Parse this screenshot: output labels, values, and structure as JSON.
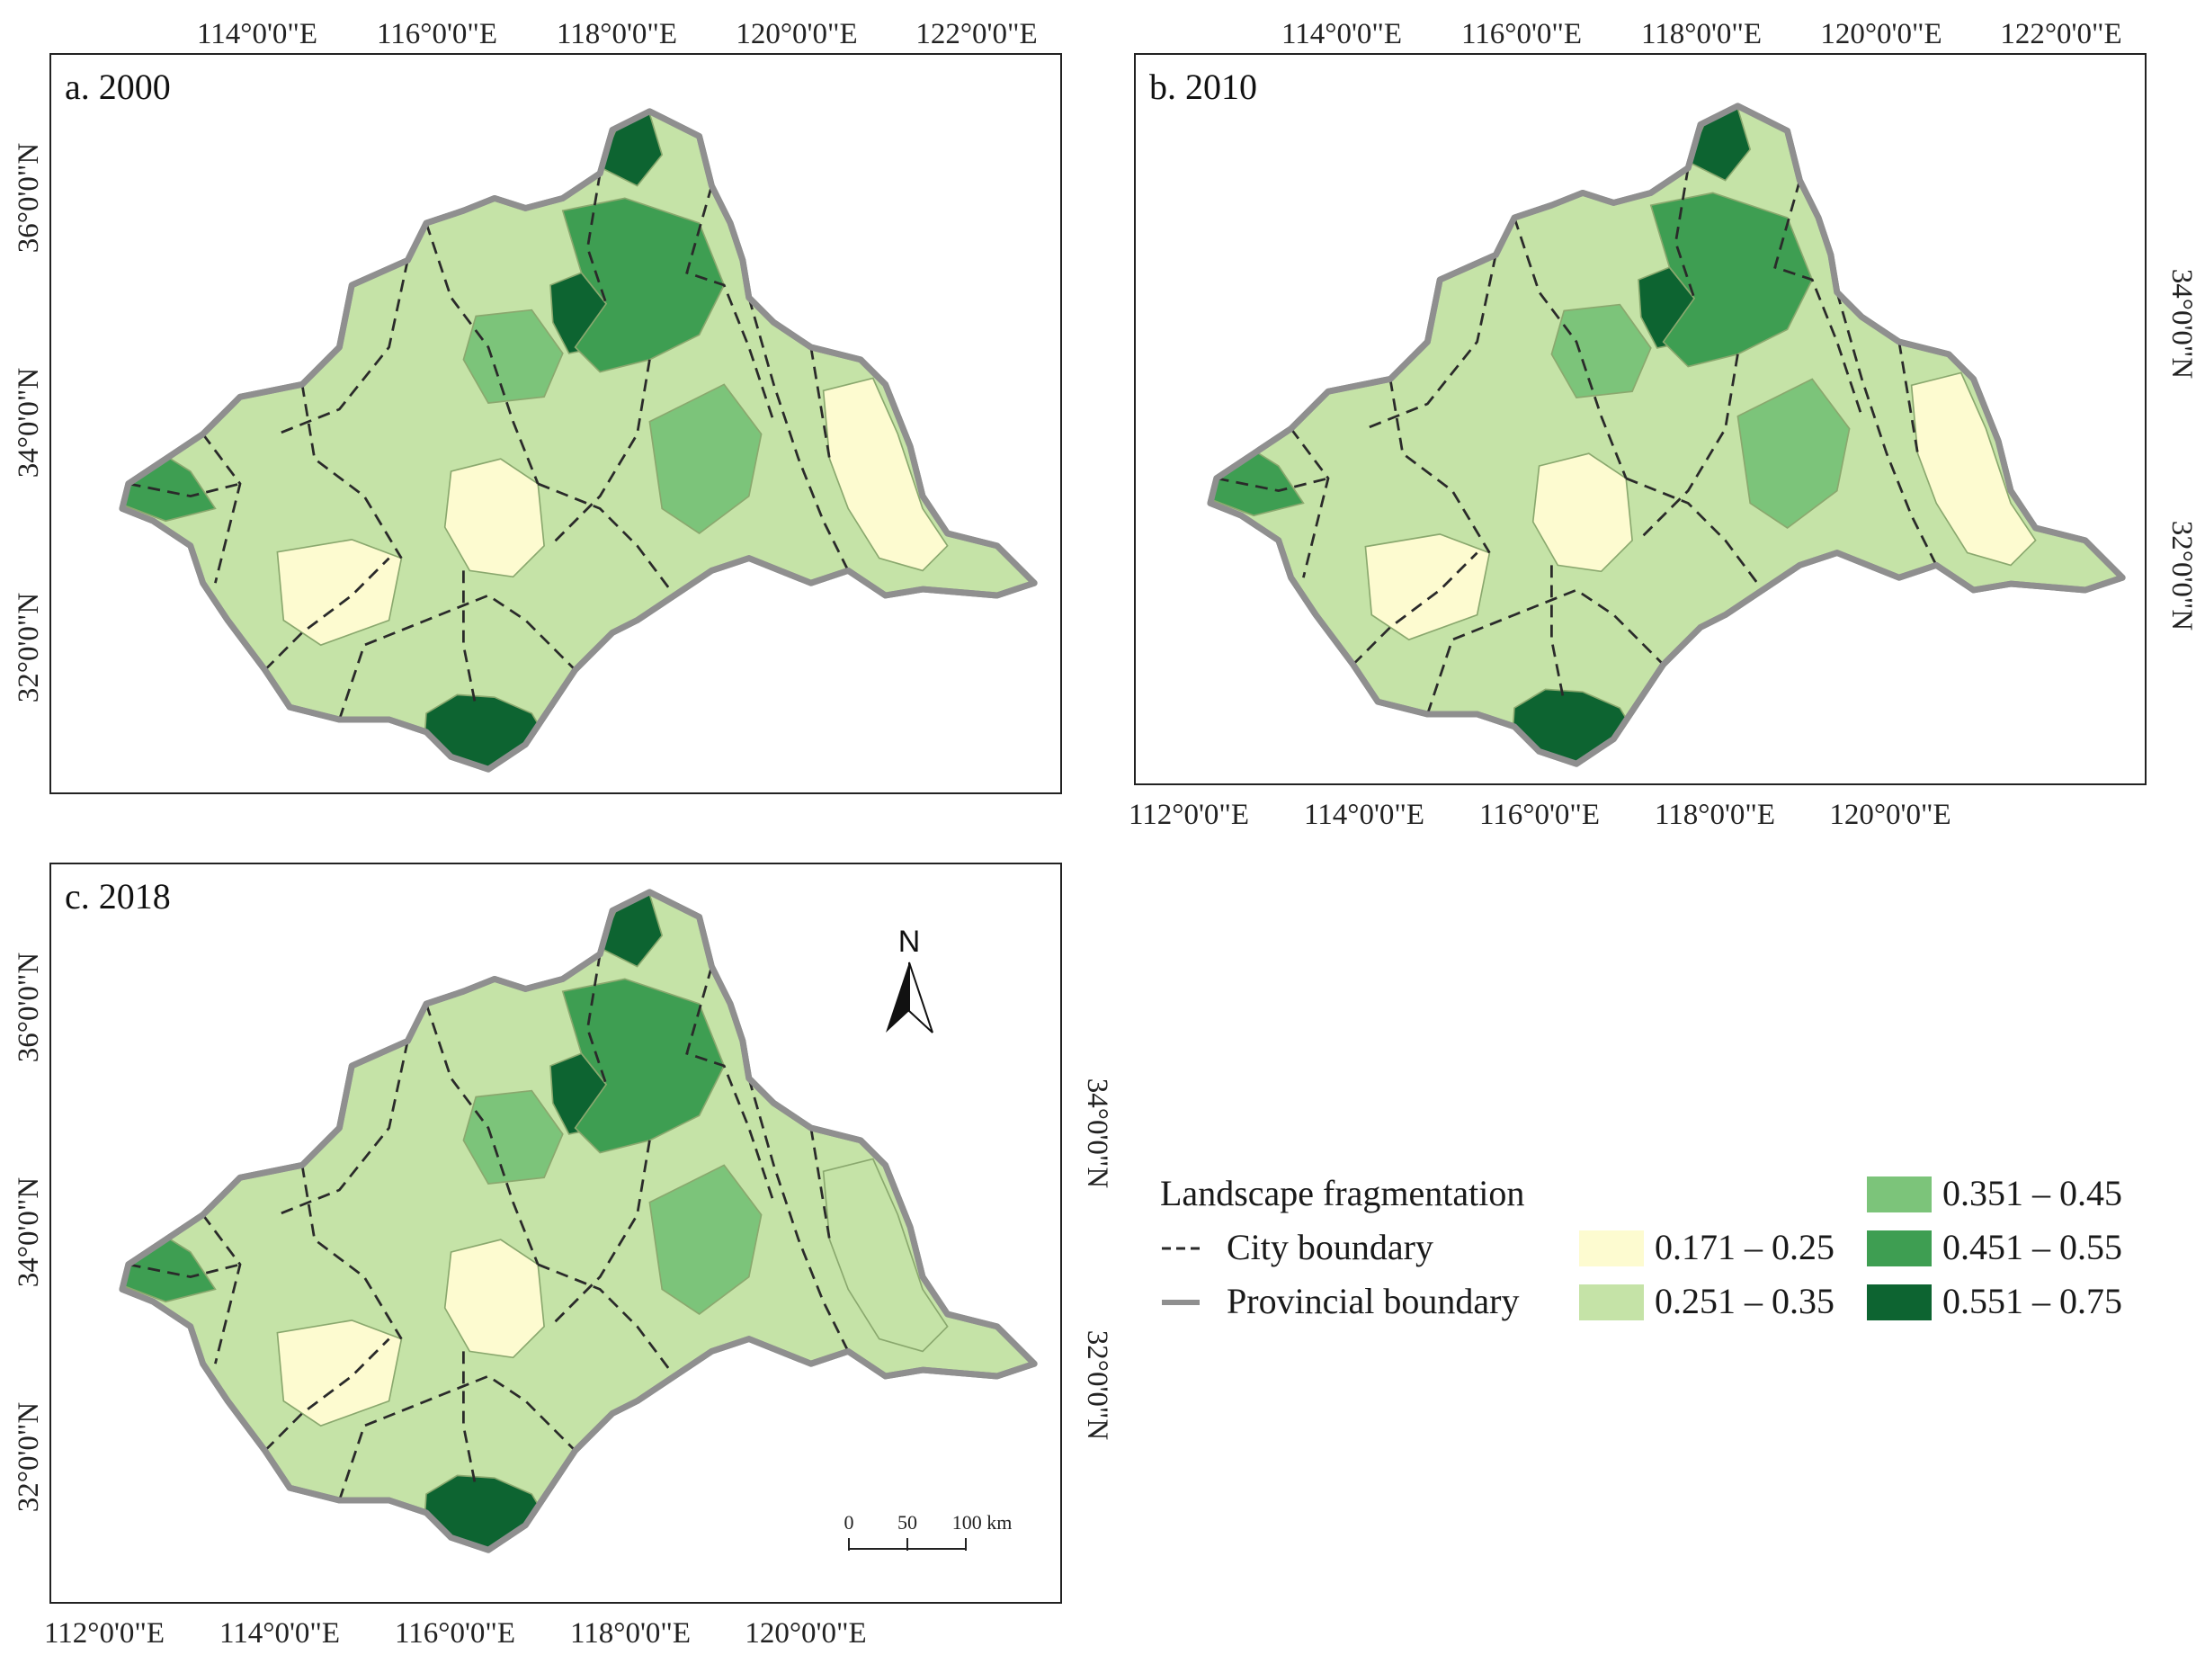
{
  "colors": {
    "class1": "#fdfbd0",
    "class2": "#c5e3a7",
    "class3": "#7cc47a",
    "class4": "#3e9e52",
    "class5": "#0d6431",
    "province_stroke": "#8f8f8f",
    "city_stroke": "#2a2a2a"
  },
  "panels": [
    {
      "title": "a. 2000",
      "top_ticks": [
        "114°0'0\"E",
        "116°0'0\"E",
        "118°0'0\"E",
        "120°0'0\"E",
        "122°0'0\"E"
      ],
      "left_ticks": [
        "36°0'0\"N",
        "34°0'0\"N",
        "32°0'0\"N"
      ],
      "patches": [
        {
          "cls": "class5",
          "shape": "blob-south"
        },
        {
          "cls": "class5",
          "shape": "blob-north"
        },
        {
          "cls": "class5",
          "shape": "blob-center-north"
        },
        {
          "cls": "class4",
          "shape": "ne-block"
        },
        {
          "cls": "class4",
          "shape": "west-tip"
        },
        {
          "cls": "class3",
          "shape": "east-center"
        },
        {
          "cls": "class3",
          "shape": "mid-north"
        },
        {
          "cls": "class1",
          "shape": "east-coast"
        },
        {
          "cls": "class1",
          "shape": "center-pale"
        },
        {
          "cls": "class1",
          "shape": "south-pale"
        }
      ]
    },
    {
      "title": "b. 2010",
      "top_ticks": [
        "114°0'0\"E",
        "116°0'0\"E",
        "118°0'0\"E",
        "120°0'0\"E",
        "122°0'0\"E"
      ],
      "right_ticks": [
        "34°0'0\"N",
        "32°0'0\"N"
      ],
      "bottom_ticks": [
        "112°0'0\"E",
        "114°0'0\"E",
        "116°0'0\"E",
        "118°0'0\"E",
        "120°0'0\"E"
      ],
      "patches": [
        {
          "cls": "class5",
          "shape": "blob-south"
        },
        {
          "cls": "class5",
          "shape": "blob-north"
        },
        {
          "cls": "class5",
          "shape": "blob-center-north"
        },
        {
          "cls": "class4",
          "shape": "ne-block"
        },
        {
          "cls": "class4",
          "shape": "west-tip"
        },
        {
          "cls": "class3",
          "shape": "east-center"
        },
        {
          "cls": "class3",
          "shape": "mid-north"
        },
        {
          "cls": "class1",
          "shape": "east-coast"
        },
        {
          "cls": "class1",
          "shape": "center-pale"
        },
        {
          "cls": "class1",
          "shape": "south-pale"
        }
      ]
    },
    {
      "title": "c. 2018",
      "left_ticks": [
        "36°0'0\"N",
        "34°0'0\"N",
        "32°0'0\"N"
      ],
      "right_ticks": [
        "34°0'0\"N",
        "32°0'0\"N"
      ],
      "bottom_ticks": [
        "112°0'0\"E",
        "114°0'0\"E",
        "116°0'0\"E",
        "118°0'0\"E",
        "120°0'0\"E"
      ],
      "north_arrow": "N",
      "scale_bar": {
        "labels": [
          "0",
          "50",
          "100 km"
        ]
      },
      "patches": [
        {
          "cls": "class5",
          "shape": "blob-south"
        },
        {
          "cls": "class5",
          "shape": "blob-north"
        },
        {
          "cls": "class5",
          "shape": "blob-center-north"
        },
        {
          "cls": "class4",
          "shape": "ne-block"
        },
        {
          "cls": "class4",
          "shape": "west-tip"
        },
        {
          "cls": "class3",
          "shape": "east-center"
        },
        {
          "cls": "class3",
          "shape": "mid-north"
        },
        {
          "cls": "class2",
          "shape": "east-coast"
        },
        {
          "cls": "class1",
          "shape": "center-pale"
        },
        {
          "cls": "class1",
          "shape": "south-pale"
        }
      ]
    }
  ],
  "legend": {
    "title": "Landscape fragmentation",
    "city_boundary": "City boundary",
    "provincial_boundary": "Provincial boundary",
    "classes": [
      {
        "label": "0.171 – 0.25",
        "color": "#fdfbd0"
      },
      {
        "label": "0.251 – 0.35",
        "color": "#c5e3a7"
      },
      {
        "label": "0.351 – 0.45",
        "color": "#7cc47a"
      },
      {
        "label": "0.451 – 0.55",
        "color": "#3e9e52"
      },
      {
        "label": "0.551 – 0.75",
        "color": "#0d6431"
      }
    ]
  }
}
